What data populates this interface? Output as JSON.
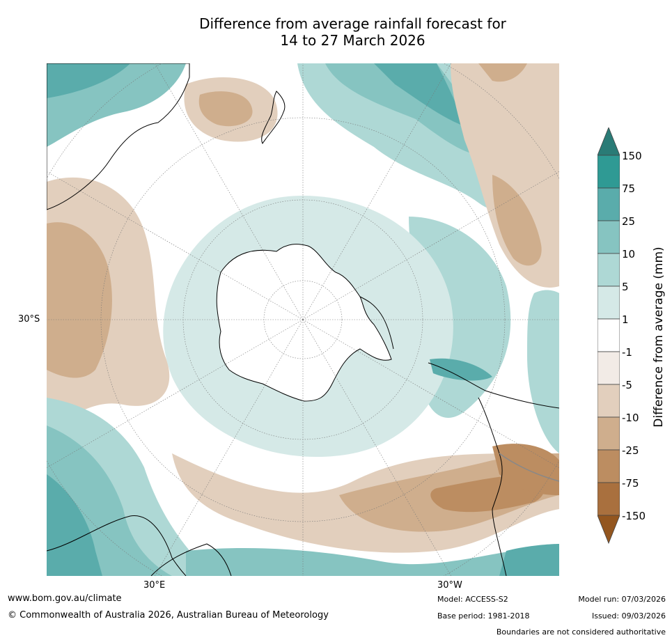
{
  "title": {
    "line1": "Difference from average rainfall forecast for",
    "line2": "14 to 27 March 2026"
  },
  "map": {
    "projection": "south-polar-stereographic",
    "lat_label": "30°S",
    "lon_labels": [
      "30°E",
      "30°W"
    ],
    "colors": {
      "ocean_base": "#ffffff",
      "coast": "#000000",
      "boundary": "#888888",
      "grid": "#777777"
    }
  },
  "colorbar": {
    "title": "Difference from average (mm)",
    "ticks": [
      "150",
      "75",
      "25",
      "10",
      "5",
      "1",
      "-1",
      "-5",
      "-10",
      "-25",
      "-75",
      "-150"
    ],
    "colors": [
      "#2a7b76",
      "#2f9a94",
      "#5aacab",
      "#86c4c1",
      "#aed8d5",
      "#d5e9e7",
      "#ffffff",
      "#f2ebe6",
      "#e2cfbd",
      "#cfae8d",
      "#bc8d61",
      "#a9703e",
      "#93561f"
    ]
  },
  "footer": {
    "url": "www.bom.gov.au/climate",
    "copyright": "© Commonwealth of Australia 2026, Australian Bureau of Meteorology",
    "model": "Model: ACCESS-S2",
    "base_period": "Base period: 1981-2018",
    "model_run": "Model run: 07/03/2026",
    "issued": "Issued: 09/03/2026",
    "disclaimer": "Boundaries are not considered authoritative"
  }
}
